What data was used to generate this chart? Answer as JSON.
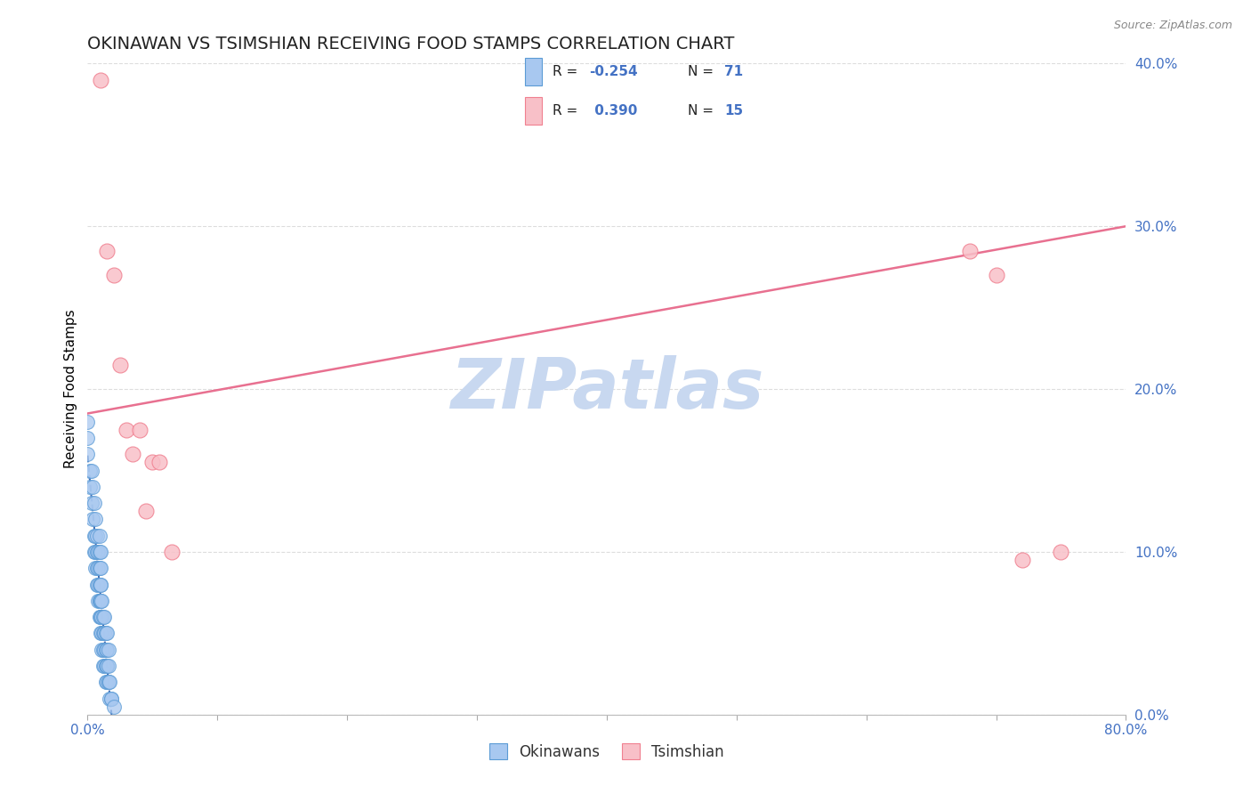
{
  "title": "OKINAWAN VS TSIMSHIAN RECEIVING FOOD STAMPS CORRELATION CHART",
  "source": "Source: ZipAtlas.com",
  "ylabel": "Receiving Food Stamps",
  "xlim": [
    0.0,
    0.8
  ],
  "ylim": [
    0.0,
    0.4
  ],
  "xticks": [
    0.0,
    0.1,
    0.2,
    0.3,
    0.4,
    0.5,
    0.6,
    0.7,
    0.8
  ],
  "xticklabels_sparse": [
    "0.0%",
    "",
    "",
    "",
    "",
    "",
    "",
    "",
    "80.0%"
  ],
  "yticks": [
    0.0,
    0.1,
    0.2,
    0.3,
    0.4
  ],
  "yticklabels": [
    "0.0%",
    "10.0%",
    "20.0%",
    "30.0%",
    "40.0%"
  ],
  "okinawan_color": "#A8C8F0",
  "okinawan_edge_color": "#5B9BD5",
  "tsimshian_color": "#F8C0C8",
  "tsimshian_edge_color": "#F08090",
  "okinawan_line_color": "#2E5FAD",
  "tsimshian_line_color": "#E87090",
  "tick_label_color": "#4472C4",
  "watermark_color": "#C8D8F0",
  "R_okinawan": -0.254,
  "N_okinawan": 71,
  "R_tsimshian": 0.39,
  "N_tsimshian": 15,
  "legend_label_okinawan": "Okinawans",
  "legend_label_tsimshian": "Tsimshian",
  "okinawan_x": [
    0.0,
    0.0,
    0.0,
    0.002,
    0.002,
    0.003,
    0.003,
    0.004,
    0.004,
    0.005,
    0.005,
    0.005,
    0.006,
    0.006,
    0.006,
    0.006,
    0.007,
    0.007,
    0.007,
    0.007,
    0.008,
    0.008,
    0.008,
    0.008,
    0.009,
    0.009,
    0.009,
    0.009,
    0.009,
    0.009,
    0.009,
    0.01,
    0.01,
    0.01,
    0.01,
    0.01,
    0.01,
    0.01,
    0.01,
    0.01,
    0.011,
    0.011,
    0.011,
    0.011,
    0.012,
    0.012,
    0.012,
    0.012,
    0.013,
    0.013,
    0.013,
    0.013,
    0.013,
    0.014,
    0.014,
    0.014,
    0.014,
    0.015,
    0.015,
    0.015,
    0.015,
    0.015,
    0.016,
    0.016,
    0.016,
    0.016,
    0.017,
    0.017,
    0.018,
    0.018,
    0.02
  ],
  "okinawan_y": [
    0.18,
    0.16,
    0.17,
    0.14,
    0.15,
    0.13,
    0.15,
    0.12,
    0.14,
    0.1,
    0.11,
    0.13,
    0.09,
    0.1,
    0.11,
    0.12,
    0.08,
    0.09,
    0.1,
    0.11,
    0.07,
    0.08,
    0.09,
    0.1,
    0.06,
    0.07,
    0.07,
    0.08,
    0.09,
    0.1,
    0.11,
    0.05,
    0.06,
    0.06,
    0.07,
    0.07,
    0.08,
    0.08,
    0.09,
    0.1,
    0.04,
    0.05,
    0.06,
    0.07,
    0.03,
    0.04,
    0.05,
    0.06,
    0.03,
    0.04,
    0.05,
    0.05,
    0.06,
    0.02,
    0.03,
    0.04,
    0.05,
    0.02,
    0.03,
    0.03,
    0.04,
    0.05,
    0.02,
    0.02,
    0.03,
    0.04,
    0.01,
    0.02,
    0.01,
    0.01,
    0.005
  ],
  "tsimshian_x": [
    0.01,
    0.015,
    0.02,
    0.025,
    0.03,
    0.035,
    0.04,
    0.045,
    0.05,
    0.055,
    0.065,
    0.68,
    0.7,
    0.72,
    0.75
  ],
  "tsimshian_y": [
    0.39,
    0.285,
    0.27,
    0.215,
    0.175,
    0.16,
    0.175,
    0.125,
    0.155,
    0.155,
    0.1,
    0.285,
    0.27,
    0.095,
    0.1
  ],
  "background_color": "#FFFFFF",
  "grid_color": "#DDDDDD",
  "title_fontsize": 14,
  "axis_fontsize": 11,
  "tick_fontsize": 11,
  "watermark": "ZIPatlas"
}
